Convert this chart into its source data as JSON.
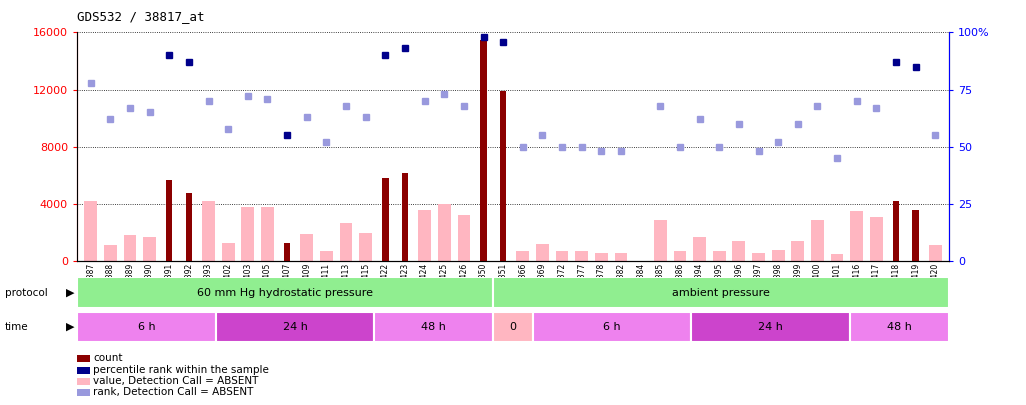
{
  "title": "GDS532 / 38817_at",
  "samples": [
    "GSM11387",
    "GSM11388",
    "GSM11389",
    "GSM11390",
    "GSM11391",
    "GSM11392",
    "GSM11393",
    "GSM11402",
    "GSM11403",
    "GSM11405",
    "GSM11407",
    "GSM11409",
    "GSM11411",
    "GSM11413",
    "GSM11415",
    "GSM11422",
    "GSM11423",
    "GSM11424",
    "GSM11425",
    "GSM11426",
    "GSM11350",
    "GSM11351",
    "GSM11366",
    "GSM11369",
    "GSM11372",
    "GSM11377",
    "GSM11378",
    "GSM11382",
    "GSM11384",
    "GSM11385",
    "GSM11386",
    "GSM11394",
    "GSM11395",
    "GSM11396",
    "GSM11397",
    "GSM11398",
    "GSM11399",
    "GSM11400",
    "GSM11401",
    "GSM11416",
    "GSM11417",
    "GSM11418",
    "GSM11419",
    "GSM11420"
  ],
  "count_values": [
    0,
    0,
    0,
    0,
    5700,
    4800,
    0,
    0,
    0,
    0,
    1300,
    0,
    0,
    0,
    0,
    5800,
    6200,
    0,
    0,
    0,
    15500,
    11900,
    0,
    0,
    0,
    0,
    0,
    0,
    0,
    0,
    0,
    0,
    0,
    0,
    0,
    0,
    0,
    0,
    0,
    0,
    0,
    4200,
    3600,
    0
  ],
  "absent_values": [
    4200,
    1100,
    1800,
    1700,
    0,
    0,
    4200,
    1300,
    3800,
    3800,
    0,
    1900,
    700,
    2700,
    2000,
    0,
    0,
    3600,
    4000,
    3200,
    0,
    0,
    700,
    1200,
    700,
    700,
    600,
    600,
    0,
    2900,
    700,
    1700,
    700,
    1400,
    600,
    800,
    1400,
    2900,
    500,
    3500,
    3100,
    0,
    0,
    1100
  ],
  "rank_present": [
    null,
    null,
    null,
    null,
    90,
    87,
    null,
    null,
    null,
    null,
    55,
    null,
    null,
    null,
    null,
    90,
    93,
    null,
    null,
    null,
    98,
    96,
    null,
    null,
    null,
    null,
    null,
    null,
    null,
    null,
    null,
    null,
    null,
    null,
    null,
    null,
    null,
    null,
    null,
    null,
    null,
    87,
    85,
    null
  ],
  "rank_absent": [
    78,
    62,
    67,
    65,
    null,
    null,
    70,
    58,
    72,
    71,
    null,
    63,
    52,
    68,
    63,
    null,
    null,
    70,
    73,
    68,
    null,
    null,
    50,
    55,
    50,
    50,
    48,
    48,
    null,
    68,
    50,
    62,
    50,
    60,
    48,
    52,
    60,
    68,
    45,
    70,
    67,
    null,
    null,
    55
  ],
  "protocol_groups": [
    {
      "label": "60 mm Hg hydrostatic pressure",
      "start": 0,
      "end": 21,
      "color": "#90EE90"
    },
    {
      "label": "ambient pressure",
      "start": 21,
      "end": 44,
      "color": "#90EE90"
    }
  ],
  "time_groups": [
    {
      "label": "6 h",
      "start": 0,
      "end": 7,
      "color": "#EE82EE"
    },
    {
      "label": "24 h",
      "start": 7,
      "end": 15,
      "color": "#CC44CC"
    },
    {
      "label": "48 h",
      "start": 15,
      "end": 21,
      "color": "#EE82EE"
    },
    {
      "label": "0",
      "start": 21,
      "end": 23,
      "color": "#FFB6C1"
    },
    {
      "label": "6 h",
      "start": 23,
      "end": 31,
      "color": "#EE82EE"
    },
    {
      "label": "24 h",
      "start": 31,
      "end": 39,
      "color": "#CC44CC"
    },
    {
      "label": "48 h",
      "start": 39,
      "end": 44,
      "color": "#EE82EE"
    }
  ],
  "ylim_left": [
    0,
    16000
  ],
  "ylim_right": [
    0,
    100
  ],
  "yticks_left": [
    0,
    4000,
    8000,
    12000,
    16000
  ],
  "yticks_right": [
    0,
    25,
    50,
    75,
    100
  ],
  "color_count": "#8B0000",
  "color_absent_bar": "#FFB6C1",
  "color_rank_present": "#00008B",
  "color_rank_absent": "#9999DD",
  "bar_width": 0.65
}
